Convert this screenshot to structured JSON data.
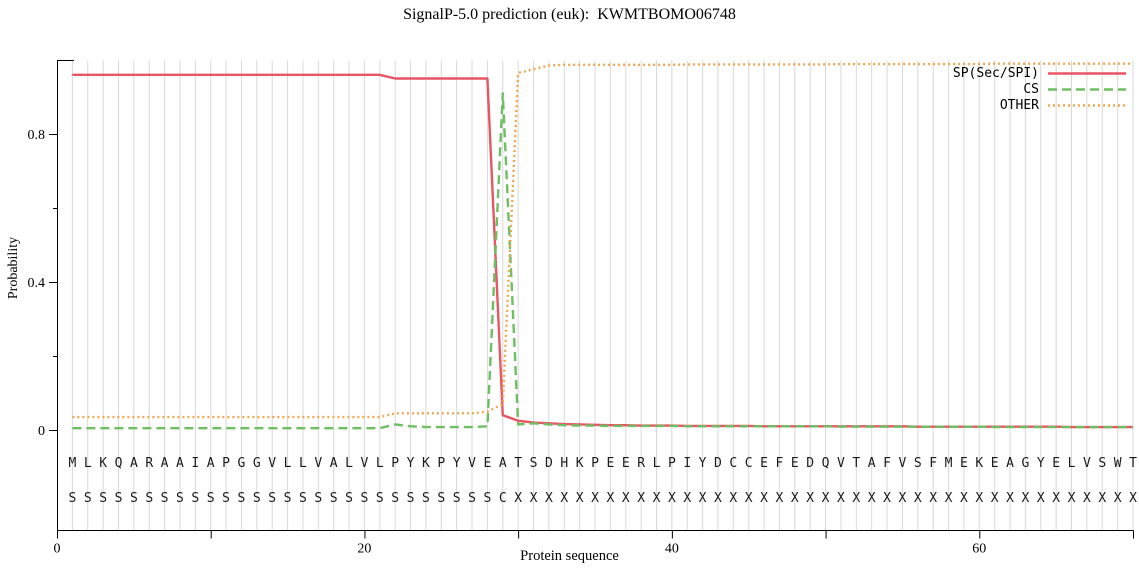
{
  "title": "SignalP-5.0 prediction (euk):  KWMTBOMO06748",
  "chart_data": {
    "type": "line",
    "title": "SignalP-5.0 prediction (euk):  KWMTBOMO06748",
    "xlabel": "Protein sequence",
    "ylabel": "Probability",
    "xlim": [
      0,
      70
    ],
    "ylim": [
      0,
      1.027
    ],
    "grid": "vertical gridline at every residue position",
    "legend_position": "top-right",
    "xticks": {
      "major": [
        {
          "value": 0,
          "label": "0"
        },
        {
          "value": 20,
          "label": "20"
        },
        {
          "value": 40,
          "label": "40"
        },
        {
          "value": 60,
          "label": "60"
        }
      ],
      "minor": [
        10,
        30,
        50,
        70
      ]
    },
    "yticks": {
      "major": [
        {
          "value": 0,
          "label": "0"
        },
        {
          "value": 0.4,
          "label": "0.4"
        },
        {
          "value": 0.8,
          "label": "0.8"
        }
      ],
      "minor": [
        0.2,
        0.6
      ]
    },
    "sequence": "MLKQARAAIAPGGVLLVALVLPYKPYVEATSDHKPEERLPIYDCCEFEDQVTAFVSFMEKEAGYELVSWT",
    "annotation": "SSSSSSSSSSSSSSSSSSSSSSSSSSSSCXXXXXXXXXXXXXXXXXXXXXXXXXXXXXXXXXXXXXXXXXX",
    "series": [
      {
        "name": "SP(Sec/SPI)",
        "style": "solid",
        "color": "#e85563",
        "values": [
          0.96,
          0.96,
          0.96,
          0.96,
          0.96,
          0.96,
          0.96,
          0.96,
          0.96,
          0.96,
          0.96,
          0.96,
          0.96,
          0.96,
          0.96,
          0.96,
          0.96,
          0.96,
          0.96,
          0.96,
          0.96,
          0.95,
          0.95,
          0.95,
          0.95,
          0.95,
          0.95,
          0.95,
          0.04,
          0.025,
          0.02,
          0.018,
          0.016,
          0.015,
          0.014,
          0.013,
          0.013,
          0.012,
          0.012,
          0.012,
          0.011,
          0.011,
          0.011,
          0.011,
          0.011,
          0.01,
          0.01,
          0.01,
          0.01,
          0.01,
          0.01,
          0.01,
          0.01,
          0.01,
          0.01,
          0.009,
          0.009,
          0.009,
          0.009,
          0.009,
          0.009,
          0.009,
          0.009,
          0.009,
          0.009,
          0.008,
          0.008,
          0.008,
          0.008,
          0.008
        ]
      },
      {
        "name": "CS",
        "style": "dashed",
        "color": "#6ebe63",
        "values": [
          0.005,
          0.005,
          0.005,
          0.005,
          0.005,
          0.005,
          0.005,
          0.005,
          0.005,
          0.005,
          0.005,
          0.005,
          0.005,
          0.005,
          0.005,
          0.005,
          0.005,
          0.005,
          0.005,
          0.005,
          0.005,
          0.015,
          0.01,
          0.008,
          0.008,
          0.008,
          0.008,
          0.01,
          0.91,
          0.015,
          0.018,
          0.015,
          0.013,
          0.012,
          0.012,
          0.011,
          0.011,
          0.011,
          0.011,
          0.011,
          0.01,
          0.01,
          0.01,
          0.01,
          0.01,
          0.01,
          0.01,
          0.01,
          0.01,
          0.01,
          0.009,
          0.009,
          0.009,
          0.009,
          0.009,
          0.009,
          0.009,
          0.009,
          0.009,
          0.009,
          0.008,
          0.008,
          0.008,
          0.008,
          0.008,
          0.008,
          0.008,
          0.008,
          0.008,
          0.008
        ]
      },
      {
        "name": "OTHER",
        "style": "dotted",
        "color": "#f2a64e",
        "values": [
          0.035,
          0.035,
          0.035,
          0.035,
          0.035,
          0.035,
          0.035,
          0.035,
          0.035,
          0.035,
          0.035,
          0.035,
          0.035,
          0.035,
          0.035,
          0.035,
          0.035,
          0.035,
          0.035,
          0.035,
          0.035,
          0.045,
          0.045,
          0.045,
          0.045,
          0.045,
          0.045,
          0.05,
          0.07,
          0.965,
          0.975,
          0.985,
          0.987,
          0.987,
          0.987,
          0.987,
          0.987,
          0.987,
          0.987,
          0.987,
          0.988,
          0.988,
          0.988,
          0.988,
          0.988,
          0.988,
          0.988,
          0.988,
          0.988,
          0.988,
          0.989,
          0.989,
          0.989,
          0.989,
          0.989,
          0.989,
          0.989,
          0.989,
          0.989,
          0.989,
          0.99,
          0.99,
          0.99,
          0.99,
          0.99,
          0.99,
          0.99,
          0.99,
          0.99,
          0.99
        ]
      }
    ],
    "colors": {
      "grid": "#d8d8d8",
      "axis": "#000000",
      "sequence_text": "#1a1a1a"
    }
  }
}
